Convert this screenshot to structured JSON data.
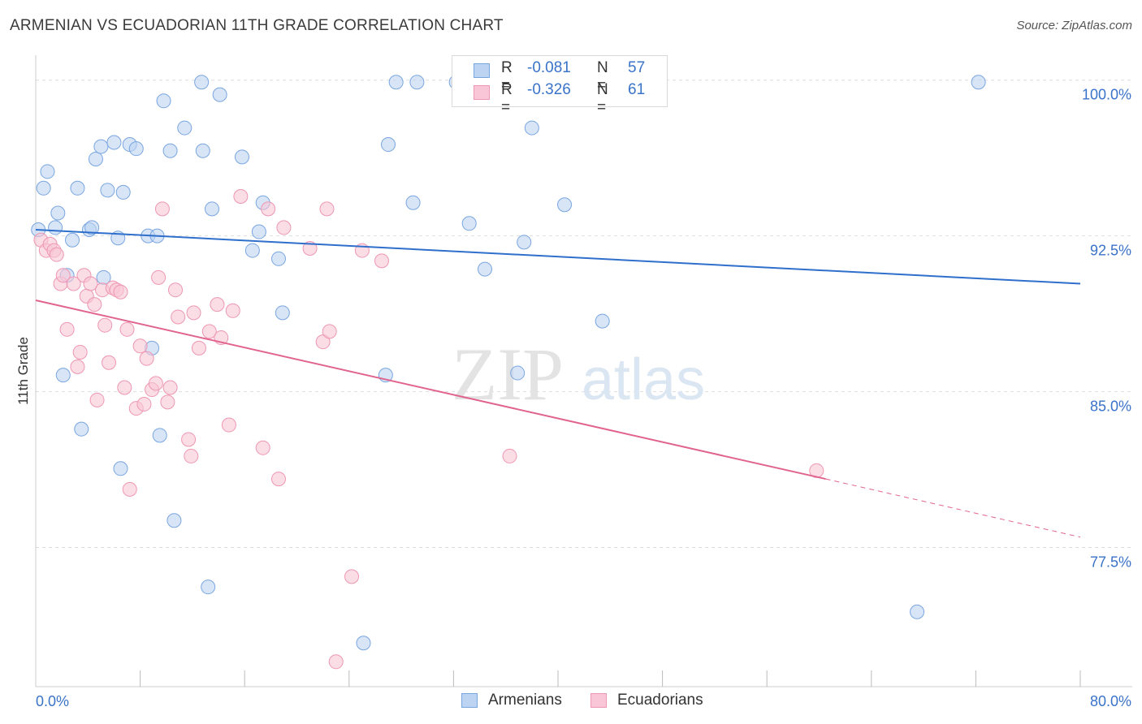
{
  "header": {
    "title": "ARMENIAN VS ECUADORIAN 11TH GRADE CORRELATION CHART",
    "source": "Source: ZipAtlas.com"
  },
  "watermark": {
    "zip": "ZIP",
    "atlas": "atlas"
  },
  "legend": {
    "rows": [
      {
        "r_label": "R =",
        "r_value": "-0.081",
        "n_label": "N =",
        "n_value": "57"
      },
      {
        "r_label": "R =",
        "r_value": "-0.326",
        "n_label": "N =",
        "n_value": "61"
      }
    ]
  },
  "bottom_legend": {
    "armenians": "Armenians",
    "ecuadorians": "Ecuadorians"
  },
  "colors": {
    "armenian_fill": "#bcd4f2",
    "armenian_stroke": "#7aa6e0",
    "armenian_line": "#2f6fcc",
    "ecuadorian_fill": "#f8c6d6",
    "ecuadorian_stroke": "#ee97b3",
    "ecuadorian_line": "#e0648f",
    "tick_label": "#3a73c8",
    "grid": "#dddddd"
  },
  "chart_data": {
    "type": "scatter",
    "title": "ARMENIAN VS ECUADORIAN 11TH GRADE CORRELATION CHART",
    "xlabel": "",
    "ylabel": "11th Grade",
    "xlim": [
      0,
      80
    ],
    "ylim": [
      70.8,
      101.2
    ],
    "x_tick_labels": [
      {
        "value": 0,
        "label": "0.0%"
      },
      {
        "value": 80,
        "label": "80.0%"
      }
    ],
    "y_tick_labels": [
      {
        "value": 100,
        "label": "100.0%"
      },
      {
        "value": 92.5,
        "label": "92.5%"
      },
      {
        "value": 85,
        "label": "85.0%"
      },
      {
        "value": 77.5,
        "label": "77.5%"
      }
    ],
    "x_minor_ticks": [
      8,
      16,
      24,
      32,
      40,
      48,
      56,
      64,
      72,
      80
    ],
    "grid": true,
    "legend_position": "top-center",
    "series": [
      {
        "name": "Armenians",
        "trend": {
          "x": [
            0,
            80
          ],
          "y": [
            92.8,
            90.2
          ]
        },
        "points": [
          [
            0.2,
            92.8
          ],
          [
            0.6,
            94.8
          ],
          [
            0.9,
            95.6
          ],
          [
            1.5,
            92.9
          ],
          [
            1.7,
            93.6
          ],
          [
            2.1,
            85.8
          ],
          [
            2.4,
            90.6
          ],
          [
            2.8,
            92.3
          ],
          [
            3.2,
            94.8
          ],
          [
            3.5,
            83.2
          ],
          [
            4.1,
            92.8
          ],
          [
            4.3,
            92.9
          ],
          [
            4.6,
            96.2
          ],
          [
            5.0,
            96.8
          ],
          [
            5.2,
            90.5
          ],
          [
            5.5,
            94.7
          ],
          [
            6.0,
            97.0
          ],
          [
            6.3,
            92.4
          ],
          [
            6.5,
            81.3
          ],
          [
            6.7,
            94.6
          ],
          [
            7.2,
            96.9
          ],
          [
            7.7,
            96.7
          ],
          [
            8.6,
            92.5
          ],
          [
            8.9,
            87.1
          ],
          [
            9.3,
            92.5
          ],
          [
            9.5,
            82.9
          ],
          [
            9.8,
            99.0
          ],
          [
            10.3,
            96.6
          ],
          [
            10.6,
            78.8
          ],
          [
            11.4,
            97.7
          ],
          [
            12.7,
            99.9
          ],
          [
            12.8,
            96.6
          ],
          [
            13.2,
            75.6
          ],
          [
            13.5,
            93.8
          ],
          [
            14.1,
            99.3
          ],
          [
            15.8,
            96.3
          ],
          [
            16.6,
            91.8
          ],
          [
            17.1,
            92.7
          ],
          [
            17.4,
            94.1
          ],
          [
            18.6,
            91.4
          ],
          [
            18.9,
            88.8
          ],
          [
            25.1,
            72.9
          ],
          [
            26.8,
            85.8
          ],
          [
            27.0,
            96.9
          ],
          [
            27.6,
            99.9
          ],
          [
            28.9,
            94.1
          ],
          [
            29.2,
            99.9
          ],
          [
            32.2,
            99.9
          ],
          [
            33.2,
            93.1
          ],
          [
            34.4,
            90.9
          ],
          [
            36.9,
            85.9
          ],
          [
            37.4,
            92.2
          ],
          [
            38.0,
            97.7
          ],
          [
            40.5,
            94.0
          ],
          [
            43.4,
            88.4
          ],
          [
            67.5,
            74.4
          ],
          [
            72.2,
            99.9
          ]
        ]
      },
      {
        "name": "Ecuadorians",
        "trend": {
          "x": [
            0,
            60.5
          ],
          "y": [
            89.4,
            80.8
          ]
        },
        "trend_dashed": {
          "x": [
            60.5,
            80
          ],
          "y": [
            80.8,
            78.0
          ]
        },
        "points": [
          [
            0.4,
            92.3
          ],
          [
            0.8,
            91.8
          ],
          [
            1.1,
            92.1
          ],
          [
            1.4,
            91.8
          ],
          [
            1.6,
            91.6
          ],
          [
            1.9,
            90.2
          ],
          [
            2.1,
            90.6
          ],
          [
            2.4,
            88.0
          ],
          [
            2.9,
            90.2
          ],
          [
            3.2,
            86.2
          ],
          [
            3.4,
            86.9
          ],
          [
            3.7,
            90.6
          ],
          [
            3.9,
            89.6
          ],
          [
            4.2,
            90.2
          ],
          [
            4.5,
            89.2
          ],
          [
            4.7,
            84.6
          ],
          [
            5.1,
            89.9
          ],
          [
            5.3,
            88.2
          ],
          [
            5.6,
            86.4
          ],
          [
            5.9,
            90.0
          ],
          [
            6.2,
            89.9
          ],
          [
            6.5,
            89.8
          ],
          [
            6.8,
            85.2
          ],
          [
            7.0,
            88.0
          ],
          [
            7.2,
            80.3
          ],
          [
            7.7,
            84.2
          ],
          [
            8.0,
            87.2
          ],
          [
            8.3,
            84.4
          ],
          [
            8.5,
            86.6
          ],
          [
            8.9,
            85.1
          ],
          [
            9.2,
            85.4
          ],
          [
            9.4,
            90.5
          ],
          [
            9.7,
            93.8
          ],
          [
            10.1,
            84.5
          ],
          [
            10.3,
            85.2
          ],
          [
            10.7,
            89.9
          ],
          [
            10.9,
            88.6
          ],
          [
            11.7,
            82.7
          ],
          [
            11.9,
            81.9
          ],
          [
            12.1,
            88.8
          ],
          [
            12.5,
            87.1
          ],
          [
            13.3,
            87.9
          ],
          [
            13.9,
            89.2
          ],
          [
            14.2,
            87.6
          ],
          [
            14.8,
            83.4
          ],
          [
            15.1,
            88.9
          ],
          [
            15.7,
            94.4
          ],
          [
            17.4,
            82.3
          ],
          [
            17.8,
            93.8
          ],
          [
            18.6,
            80.8
          ],
          [
            19.0,
            92.9
          ],
          [
            21.0,
            91.9
          ],
          [
            22.0,
            87.4
          ],
          [
            22.3,
            93.8
          ],
          [
            22.5,
            87.9
          ],
          [
            23.0,
            72.0
          ],
          [
            24.2,
            76.1
          ],
          [
            25.0,
            91.8
          ],
          [
            26.5,
            91.3
          ],
          [
            36.3,
            81.9
          ],
          [
            59.8,
            81.2
          ]
        ]
      }
    ]
  }
}
